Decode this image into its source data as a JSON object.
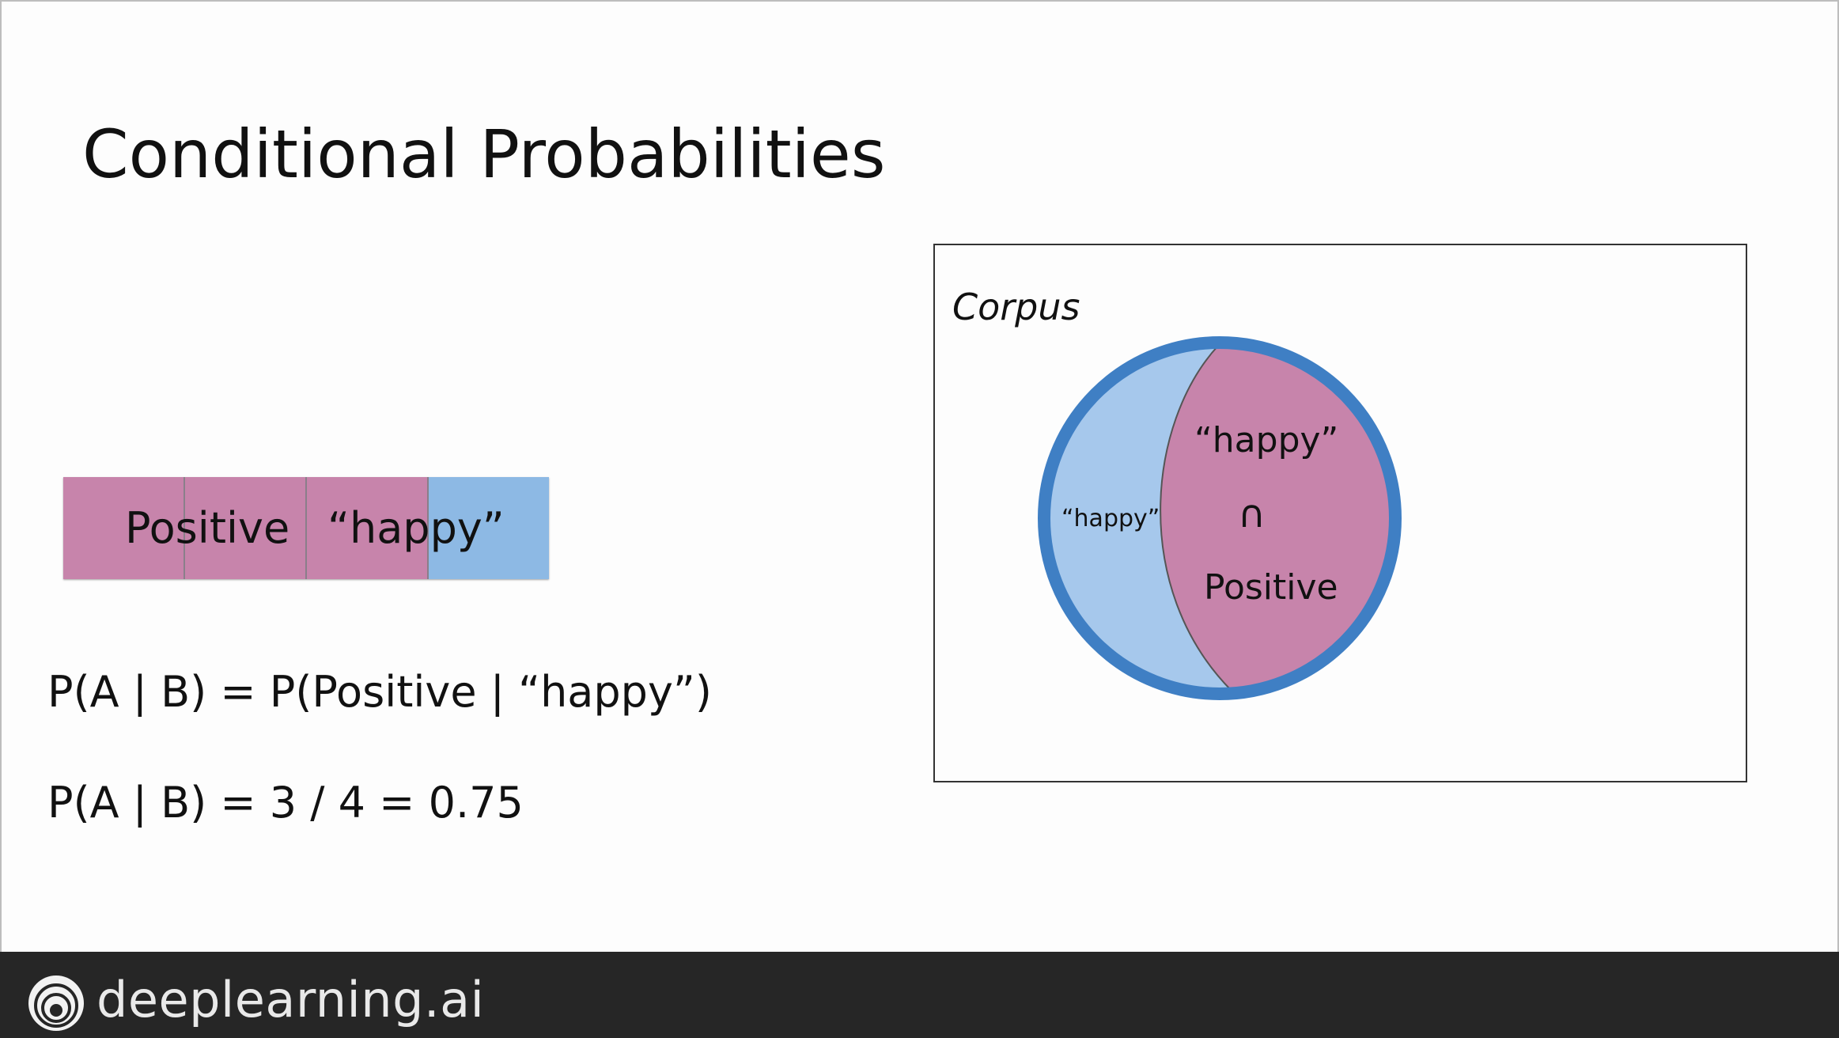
{
  "slide": {
    "title": "Conditional Probabilities"
  },
  "strip": {
    "cells": [
      {
        "category": "positive",
        "color": "#c784ab"
      },
      {
        "category": "positive",
        "color": "#c784ab"
      },
      {
        "category": "positive",
        "color": "#c784ab"
      },
      {
        "category": "other",
        "color": "#8db9e4"
      }
    ],
    "label_positive": "Positive",
    "label_happy": "“happy”"
  },
  "formulas": {
    "line1": "P(A | B) = P(Positive | “happy”)",
    "line2": "P(A | B) = 3 / 4 = 0.75"
  },
  "corpus": {
    "label": "Corpus",
    "outer_label": "“happy”",
    "intersection_top": "“happy”",
    "intersection_symbol": "∩",
    "intersection_bottom": "Positive",
    "colors": {
      "ring": "#3f7fc4",
      "happy_fill": "#a6c8ec",
      "positive_fill": "#c784ab"
    }
  },
  "footer": {
    "brand": "deeplearning.ai",
    "logo_icon": "deeplearning-logo-icon"
  }
}
